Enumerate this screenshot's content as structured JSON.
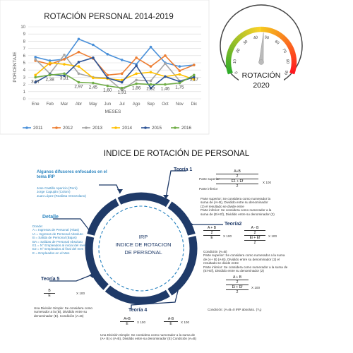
{
  "chart_data": {
    "type": "line",
    "title": "ROTACIÓN PERSONAL 2014-2019",
    "xlabel": "MESES",
    "ylabel": "PORCENTAJE",
    "ylim": [
      0,
      10
    ],
    "yticks": [
      "0",
      "1",
      "2",
      "3",
      "4",
      "5",
      "6",
      "7",
      "8",
      "9",
      "10"
    ],
    "categories": [
      "Ene",
      "Feb",
      "Mar",
      "Abr",
      "May",
      "Jun",
      "Jul",
      "Ago",
      "Sep",
      "Oct",
      "Nov",
      "Dic"
    ],
    "grid": true,
    "legend_position": "bottom",
    "series": [
      {
        "name": "2011",
        "color": "#4a90d9",
        "values": [
          5.8,
          5.3,
          5.5,
          8.3,
          7.5,
          6.2,
          5.4,
          4.8,
          7.2,
          5.0,
          4.5,
          4.7
        ]
      },
      {
        "name": "2012",
        "color": "#ed7d31",
        "values": [
          5.3,
          4.8,
          5.5,
          6.5,
          5.6,
          3.3,
          3.5,
          5.7,
          4.5,
          6.0,
          3.9,
          4.7
        ]
      },
      {
        "name": "2013",
        "color": "#a5a5a5",
        "values": [
          5.5,
          3.5,
          6.1,
          3.5,
          3.0,
          2.9,
          1.2,
          2.6,
          2.5,
          4.9,
          2.5,
          3.0
        ]
      },
      {
        "name": "2014",
        "color": "#ffc000",
        "values": [
          3.3,
          5.0,
          4.8,
          4.5,
          2.9,
          2.8,
          2.6,
          3.5,
          3.7,
          3.1,
          3.4,
          2.7
        ]
      },
      {
        "name": "2015",
        "color": "#2f5597",
        "values": [
          2.3,
          3.4,
          3.2,
          5.1,
          5.7,
          2.9,
          2.3,
          4.6,
          1.5,
          3.1,
          2.4,
          3.0
        ]
      },
      {
        "name": "2016",
        "color": "#70ad47",
        "values": [
          3.0,
          3.3,
          3.5,
          2.3,
          2.2,
          1.8,
          1.5,
          2.1,
          2.0,
          2.0,
          2.2,
          3.3
        ]
      }
    ],
    "data_labels": [
      {
        "x": "Ene",
        "value": "3,57"
      },
      {
        "x": "Feb",
        "value": "2,38"
      },
      {
        "x": "Mar",
        "value": "3,31"
      },
      {
        "x": "Abr",
        "value": "2,97"
      },
      {
        "x": "May",
        "value": "2,45"
      },
      {
        "x": "Jun",
        "value": "1,60"
      },
      {
        "x": "Jul",
        "value": "1,31"
      },
      {
        "x": "Ago",
        "value": "1,86"
      },
      {
        "x": "Sep",
        "value": "2,32"
      },
      {
        "x": "Oct",
        "value": "1,46"
      },
      {
        "x": "Nov",
        "value": "1,75"
      },
      {
        "x": "Dic",
        "value": "3,17"
      }
    ]
  },
  "gauge": {
    "ticks": [
      "0",
      "10",
      "20",
      "30",
      "40",
      "50",
      "60",
      "70",
      "80",
      "90"
    ],
    "value": 52,
    "label_line1": "ROTACIÓN",
    "label_line2": "2020"
  },
  "diagram": {
    "title": "INDICE DE ROTACIÓN DE PERSONAL",
    "center_line1": "IRP",
    "center_line2": "INDICE DE ROTACION",
    "center_line3": "DE PERSONAL",
    "theory1": "Teoría 1",
    "theory2": "Teoría2",
    "theory4": "Teoría 4",
    "theory5": "Teoría 5",
    "detail": "Detalle",
    "authors_title": "Algunos difusores enfocados en el tema IRP",
    "authors": [
      "Jose Castillo Aparicio (Perú)",
      "Jorge Capuján (Colom)",
      "Juan López (Realista Venezolano)"
    ],
    "detail_lines": [
      "Donde:",
      "A = Ingresos de Personal (Altas)",
      "IA = Ingresos de Personal Absoluto",
      "B = Salida de Personal (Bajas)",
      "BA = Salidas de Personal Absoluto",
      "E1 = N° Empleados al inicial del mes",
      "E2 = N° Empleados al final del mes",
      "E = Empleados en el Mes"
    ],
    "t1_formula_top": "A+B",
    "t1_formula_mid": "2",
    "t1_formula_bot": "E1 + Ef",
    "t1_formula_bot2": "2",
    "t1_x100": "X 100",
    "t1_side1": "Parte superior",
    "t1_side2": "Parte inferior",
    "t1_text": [
      "Parte superior: Se considera como numerador la",
      "suma de (A+B), Dividido entre su denominador",
      "(2) el resultado se divide entre",
      "Parte inferior: Se considera como numerador a la",
      "suma de (Ei+Ef), Dividido entre su denominador (2)"
    ],
    "t2_f1_top": "A + B",
    "t2_f1_mid": "2",
    "t2_f1_bot": "E",
    "t2_f2_top": "A - B",
    "t2_f2_mid": "2",
    "t2_f2_bot": "Ei + Ef",
    "t2_f2_bot2": "2",
    "t2_x100": "X 100",
    "t2_text": [
      "Condición (A=B)",
      "Parte superior:    Se considera como numerador a la suma",
      "de (A+ B) (A-B), Dividido entre su denominador (2) el",
      "resultado se divide entre",
      "Parte inferior:  Se considera como numerador a la suma de",
      "(Ei+Ef), Dividido entre su denominador (2)"
    ],
    "t2_f3_top": "A + B",
    "t2_f3_mid": "2",
    "t2_f3_bot": "Ei + Ef",
    "t2_f3_bot2": "2",
    "t2_cond": "Condición: (A=B=0       IRP absoluto. (Yₐ)",
    "t4_f1_top": "A+B",
    "t4_f1_bot": "E",
    "t4_f2_top": "A-B",
    "t4_f2_bot": "E",
    "t4_x100": "X 100",
    "t4_text": [
      "Una División Simple: Se considera como numerador a la suma de",
      "(A+ B) o (A-B), Dividido entre su denominador (E) Condición (A=B)"
    ],
    "t5_f_top": "B",
    "t5_f_bot": "E",
    "t5_x100": "X 100",
    "t5_text": [
      "Una División Simple: Se considera como",
      "numerador a la (B), Dividido entre su",
      "denominador (E).    Condición (A=B)"
    ]
  }
}
